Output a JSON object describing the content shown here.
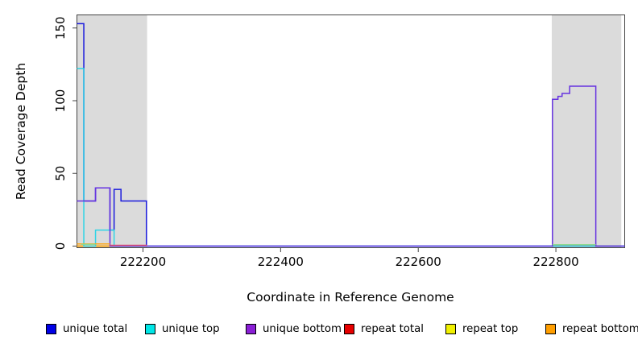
{
  "colors": {
    "background": "#FFFFFF",
    "highlight_region": "#DBDBDB",
    "axis": "#444444",
    "text": "#000000"
  },
  "chart_data": {
    "type": "line",
    "step": true,
    "title": "",
    "xlabel": "Coordinate in Reference Genome",
    "ylabel": "Read Coverage Depth",
    "xlim": [
      222104,
      222900
    ],
    "ylim": [
      0,
      159
    ],
    "xticks": [
      222200,
      222400,
      222600,
      222800
    ],
    "yticks": [
      0,
      50,
      100,
      150
    ],
    "grid": false,
    "highlight_regions": [
      {
        "x1": 222104,
        "x2": 222206
      },
      {
        "x1": 222794,
        "x2": 222895
      }
    ],
    "series": [
      {
        "name": "repeat total",
        "color": "#E60000",
        "segments": [
          [
            [
              222104,
              0
            ],
            [
              222206,
              0
            ]
          ],
          [
            [
              222794,
              0
            ],
            [
              222895,
              0
            ]
          ]
        ]
      },
      {
        "name": "repeat top",
        "color": "#F0F000",
        "segments": [
          [
            [
              222104,
              0
            ],
            [
              222206,
              0
            ]
          ],
          [
            [
              222794,
              0
            ],
            [
              222895,
              0
            ]
          ]
        ]
      },
      {
        "name": "repeat bottom",
        "color": "#FFA510",
        "segments": [
          [
            [
              222104,
              0
            ],
            [
              222152,
              0
            ]
          ],
          [
            [
              222794,
              0
            ],
            [
              222895,
              0
            ]
          ]
        ]
      },
      {
        "name": "unique total",
        "color": "#1A1ADD",
        "segments": [
          [
            [
              222104,
              153
            ],
            [
              222114,
              31
            ],
            [
              222131,
              40
            ],
            [
              222152,
              11
            ],
            [
              222158,
              39
            ],
            [
              222168,
              31
            ],
            [
              222205,
              0
            ],
            [
              222900,
              0
            ]
          ]
        ]
      },
      {
        "name": "unique top",
        "color": "#2FD4E6",
        "segments": [
          [
            [
              222104,
              122
            ],
            [
              222114,
              0
            ],
            [
              222131,
              11
            ],
            [
              222158,
              0
            ],
            [
              222900,
              0
            ]
          ]
        ]
      },
      {
        "name": "unique bottom",
        "color": "#6633E0",
        "segments": [
          [
            [
              222104,
              31
            ],
            [
              222131,
              40
            ],
            [
              222152,
              0
            ],
            [
              222795,
              101
            ],
            [
              222803,
              103
            ],
            [
              222809,
              105
            ],
            [
              222820,
              110
            ],
            [
              222858,
              0
            ],
            [
              222900,
              0
            ]
          ]
        ]
      }
    ],
    "zero_line_artifacts": [
      {
        "x1": 222104,
        "x2": 222152,
        "y": 1.5,
        "color": "#FFA510"
      },
      {
        "x1": 222110,
        "x2": 222131,
        "y": 1.2,
        "color": "#8FD98F"
      },
      {
        "x1": 222152,
        "x2": 222206,
        "y": 0.6,
        "color": "#E25570"
      },
      {
        "x1": 222795,
        "x2": 222858,
        "y": 1.0,
        "color": "#8FD98F"
      }
    ]
  },
  "legend": [
    {
      "label": "unique total",
      "color": "#0000E6"
    },
    {
      "label": "unique top",
      "color": "#00E6E6"
    },
    {
      "label": "unique bottom",
      "color": "#8A1FD6"
    },
    {
      "label": "repeat total",
      "color": "#E60000"
    },
    {
      "label": "repeat top",
      "color": "#F0F000"
    },
    {
      "label": "repeat bottom",
      "color": "#FF9E00"
    }
  ]
}
